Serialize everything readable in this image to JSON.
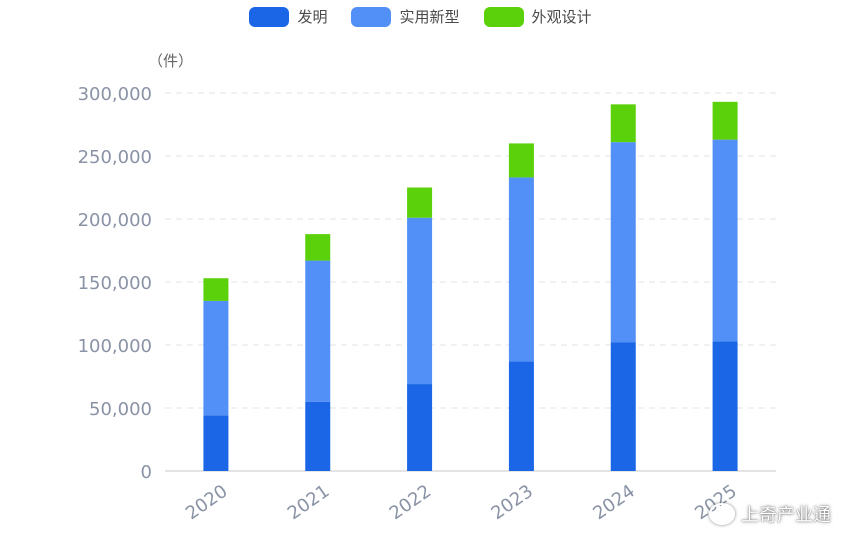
{
  "legend": [
    {
      "label": "发明",
      "color": "#1a66e6"
    },
    {
      "label": "实用新型",
      "color": "#5290f7"
    },
    {
      "label": "外观设计",
      "color": "#5ad10a"
    }
  ],
  "unit": "（件）",
  "watermark": "上奇产业通",
  "chart_data": {
    "type": "bar",
    "stacked": true,
    "categories": [
      "2020",
      "2021",
      "2022",
      "2023",
      "2024",
      "2025"
    ],
    "series": [
      {
        "name": "发明",
        "values": [
          44000,
          55000,
          69000,
          87000,
          102000,
          103000
        ]
      },
      {
        "name": "实用新型",
        "values": [
          91000,
          112000,
          132000,
          146000,
          159000,
          160000
        ]
      },
      {
        "name": "外观设计",
        "values": [
          18000,
          21000,
          24000,
          27000,
          30000,
          30000
        ]
      }
    ],
    "ylim": [
      0,
      300000
    ],
    "yticks": [
      0,
      50000,
      100000,
      150000,
      200000,
      250000,
      300000
    ],
    "ytick_labels": [
      "0",
      "50,000",
      "100,000",
      "150,000",
      "200,000",
      "250,000",
      "300,000"
    ],
    "grid": true,
    "legend_position": "top-center"
  }
}
